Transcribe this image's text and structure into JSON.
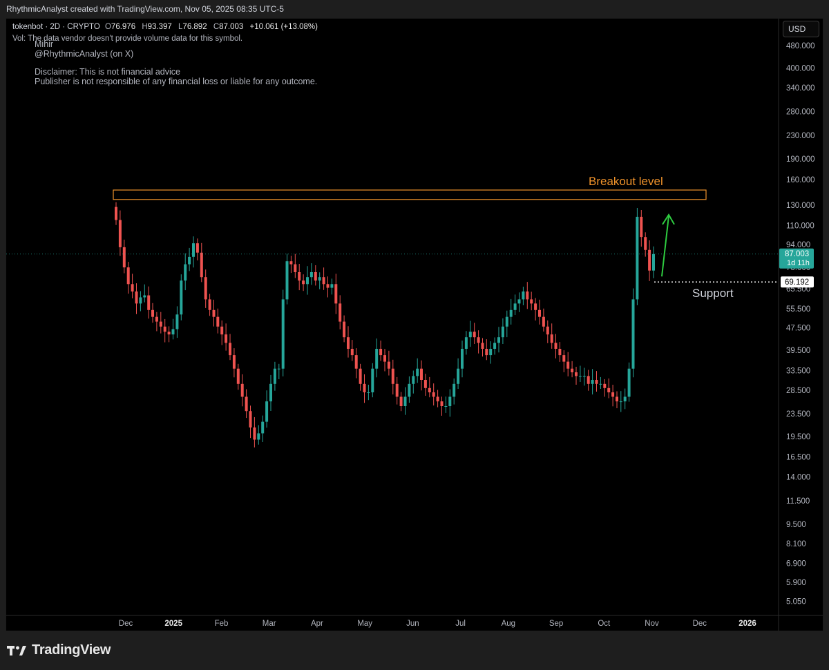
{
  "header": {
    "title": "RhythmicAnalyst created with TradingView.com, Nov 05, 2025 08:35 UTC-5"
  },
  "legend": {
    "symbol": "tokenbot · 2D · CRYPTO",
    "open_label": "O",
    "open": "76.976",
    "high_label": "H",
    "high": "93.397",
    "low_label": "L",
    "low": "76.892",
    "close_label": "C",
    "close": "87.003",
    "change": "+10.061 (+13.08%)",
    "vol_note": "Vol: The data vendor doesn't provide volume data for this symbol."
  },
  "notes": {
    "author": "Mihir",
    "handle": "@RhythmicAnalyst (on X)",
    "disclaimer": "Disclaimer: This is not financial advice",
    "liability": "Publisher is not responsible of any financial loss or liable for any outcome."
  },
  "currency_button": "USD",
  "brand": "TradingView",
  "colors": {
    "background": "#000000",
    "up": "#26a69a",
    "down": "#ef5350",
    "breakout": "#f0932b",
    "arrow": "#2ecc40",
    "price_badge": "#26a69a"
  },
  "chart_data": {
    "type": "candlestick",
    "y_scale": "log",
    "ylim": [
      4.6,
      520
    ],
    "y_ticks": [
      "480.000",
      "400.000",
      "340.000",
      "280.000",
      "230.000",
      "190.000",
      "160.000",
      "130.000",
      "110.000",
      "94.000",
      "78.000",
      "65.500",
      "55.500",
      "47.500",
      "39.500",
      "33.500",
      "28.500",
      "23.500",
      "19.500",
      "16.500",
      "14.000",
      "11.500",
      "9.500",
      "8.100",
      "6.900",
      "5.900",
      "5.050"
    ],
    "x_ticks": [
      {
        "label": "Dec",
        "bold": false
      },
      {
        "label": "2025",
        "bold": true
      },
      {
        "label": "Feb",
        "bold": false
      },
      {
        "label": "Mar",
        "bold": false
      },
      {
        "label": "Apr",
        "bold": false
      },
      {
        "label": "May",
        "bold": false
      },
      {
        "label": "Jun",
        "bold": false
      },
      {
        "label": "Jul",
        "bold": false
      },
      {
        "label": "Aug",
        "bold": false
      },
      {
        "label": "Sep",
        "bold": false
      },
      {
        "label": "Oct",
        "bold": false
      },
      {
        "label": "Nov",
        "bold": false
      },
      {
        "label": "Dec",
        "bold": false
      },
      {
        "label": "2026",
        "bold": true
      }
    ],
    "closes": [
      115,
      92,
      78,
      68,
      64,
      58,
      61,
      62,
      55,
      52,
      50,
      48,
      46,
      45,
      47,
      53,
      70,
      80,
      85,
      95,
      88,
      72,
      60,
      55,
      52,
      48,
      45,
      42,
      38,
      34,
      30,
      27,
      24,
      21,
      19,
      20,
      22,
      26,
      30,
      34,
      34,
      60,
      82,
      80,
      75,
      70,
      68,
      72,
      75,
      70,
      72,
      68,
      66,
      68,
      58,
      50,
      44,
      40,
      38,
      34,
      30,
      28,
      28,
      34,
      40,
      38,
      36,
      34,
      30,
      27,
      25,
      27,
      30,
      32,
      34,
      31,
      29,
      28,
      27,
      26,
      25,
      25,
      27,
      30,
      34,
      40,
      44,
      46,
      44,
      42,
      40,
      38,
      40,
      42,
      44,
      48,
      52,
      55,
      58,
      60,
      64,
      60,
      58,
      55,
      52,
      48,
      45,
      42,
      40,
      38,
      36,
      34,
      33,
      32,
      32,
      32,
      30,
      31,
      30,
      30,
      29,
      28,
      27,
      26,
      26,
      27,
      34,
      60,
      118,
      100,
      90,
      76,
      87
    ],
    "price_badge": {
      "value": "87.003",
      "countdown": "1d 11h"
    },
    "annotations": {
      "breakout_label": "Breakout level",
      "breakout_level": [
        136,
        147
      ],
      "support_label": "Support",
      "support_price": "69.192",
      "support_value": 69.192
    }
  }
}
